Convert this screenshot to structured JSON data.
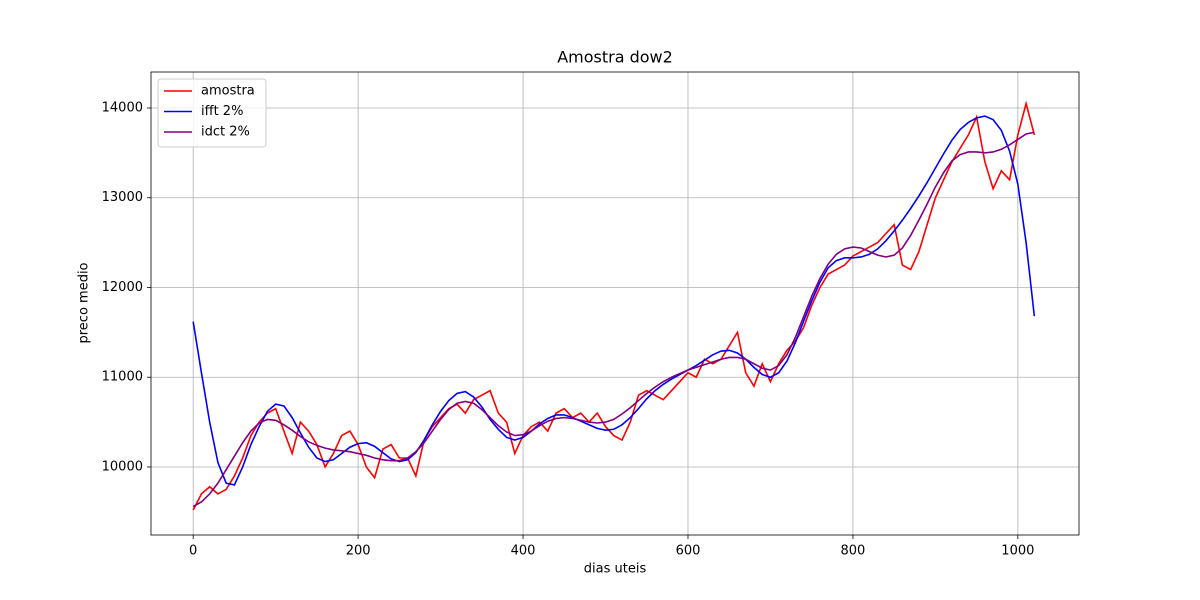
{
  "chart_data": {
    "type": "line",
    "title": "Amostra dow2",
    "x_label": "dias uteis",
    "y_label": "preco medio",
    "x": [
      0,
      10,
      20,
      30,
      40,
      50,
      60,
      70,
      80,
      90,
      100,
      110,
      120,
      130,
      140,
      150,
      160,
      170,
      180,
      190,
      200,
      210,
      220,
      230,
      240,
      250,
      260,
      270,
      280,
      290,
      300,
      310,
      320,
      330,
      340,
      350,
      360,
      370,
      380,
      390,
      400,
      410,
      420,
      430,
      440,
      450,
      460,
      470,
      480,
      490,
      500,
      510,
      520,
      530,
      540,
      550,
      560,
      570,
      580,
      590,
      600,
      610,
      620,
      630,
      640,
      650,
      660,
      670,
      680,
      690,
      700,
      710,
      720,
      730,
      740,
      750,
      760,
      770,
      780,
      790,
      800,
      810,
      820,
      830,
      840,
      850,
      860,
      870,
      880,
      890,
      900,
      910,
      920,
      930,
      940,
      950,
      960,
      970,
      980,
      990,
      1000,
      1010,
      1020
    ],
    "series": [
      {
        "name": "amostra",
        "color": "#ff0000",
        "values": [
          9520,
          9700,
          9780,
          9700,
          9750,
          9900,
          10100,
          10350,
          10500,
          10600,
          10650,
          10400,
          10150,
          10500,
          10400,
          10250,
          10000,
          10150,
          10350,
          10400,
          10250,
          10000,
          9880,
          10200,
          10250,
          10100,
          10100,
          9900,
          10300,
          10450,
          10550,
          10650,
          10700,
          10600,
          10750,
          10800,
          10850,
          10600,
          10500,
          10150,
          10350,
          10450,
          10500,
          10400,
          10600,
          10650,
          10550,
          10600,
          10500,
          10600,
          10450,
          10350,
          10300,
          10500,
          10800,
          10850,
          10800,
          10750,
          10850,
          10950,
          11050,
          11000,
          11200,
          11150,
          11200,
          11350,
          11500,
          11050,
          10900,
          11150,
          10950,
          11150,
          11300,
          11400,
          11550,
          11800,
          12000,
          12150,
          12200,
          12250,
          12350,
          12400,
          12450,
          12500,
          12600,
          12700,
          12250,
          12200,
          12400,
          12700,
          13000,
          13200,
          13400,
          13550,
          13700,
          13900,
          13400,
          13100,
          13300,
          13200,
          13700,
          14050,
          13700
        ]
      },
      {
        "name": "ifft 2%",
        "color": "#0000ff",
        "values": [
          11620,
          11050,
          10500,
          10050,
          9820,
          9800,
          10000,
          10250,
          10450,
          10620,
          10700,
          10680,
          10550,
          10380,
          10220,
          10100,
          10060,
          10080,
          10150,
          10220,
          10260,
          10270,
          10230,
          10160,
          10090,
          10060,
          10080,
          10160,
          10300,
          10470,
          10620,
          10740,
          10820,
          10840,
          10780,
          10670,
          10530,
          10420,
          10330,
          10300,
          10330,
          10400,
          10480,
          10540,
          10580,
          10580,
          10550,
          10510,
          10470,
          10430,
          10410,
          10420,
          10470,
          10550,
          10650,
          10760,
          10850,
          10920,
          10980,
          11030,
          11080,
          11130,
          11190,
          11250,
          11290,
          11300,
          11270,
          11200,
          11110,
          11030,
          11000,
          11050,
          11180,
          11380,
          11620,
          11850,
          12060,
          12220,
          12300,
          12330,
          12330,
          12340,
          12370,
          12430,
          12520,
          12630,
          12750,
          12880,
          13020,
          13170,
          13330,
          13490,
          13640,
          13760,
          13840,
          13890,
          13910,
          13870,
          13750,
          13520,
          13150,
          12500,
          11680
        ]
      },
      {
        "name": "idct 2%",
        "color": "#800080",
        "values": [
          9560,
          9610,
          9700,
          9820,
          9970,
          10120,
          10270,
          10400,
          10490,
          10530,
          10520,
          10470,
          10410,
          10340,
          10280,
          10240,
          10210,
          10190,
          10180,
          10170,
          10150,
          10130,
          10100,
          10080,
          10070,
          10070,
          10100,
          10170,
          10270,
          10400,
          10530,
          10640,
          10710,
          10730,
          10710,
          10640,
          10550,
          10460,
          10390,
          10350,
          10360,
          10400,
          10460,
          10510,
          10540,
          10550,
          10540,
          10520,
          10500,
          10490,
          10500,
          10530,
          10590,
          10660,
          10740,
          10820,
          10890,
          10950,
          11000,
          11040,
          11080,
          11110,
          11140,
          11170,
          11200,
          11220,
          11220,
          11200,
          11150,
          11100,
          11080,
          11130,
          11250,
          11440,
          11670,
          11900,
          12100,
          12260,
          12370,
          12430,
          12450,
          12440,
          12400,
          12360,
          12340,
          12360,
          12440,
          12580,
          12750,
          12930,
          13120,
          13280,
          13410,
          13480,
          13510,
          13510,
          13500,
          13510,
          13540,
          13590,
          13650,
          13710,
          13730
        ]
      }
    ],
    "xlim": [
      -51.15,
      1074.15
    ],
    "ylim": [
      9242,
      14401
    ],
    "xticks": [
      0,
      200,
      400,
      600,
      800,
      1000
    ],
    "yticks": [
      10000,
      11000,
      12000,
      13000,
      14000
    ],
    "grid": true,
    "legend": "upper-left"
  }
}
